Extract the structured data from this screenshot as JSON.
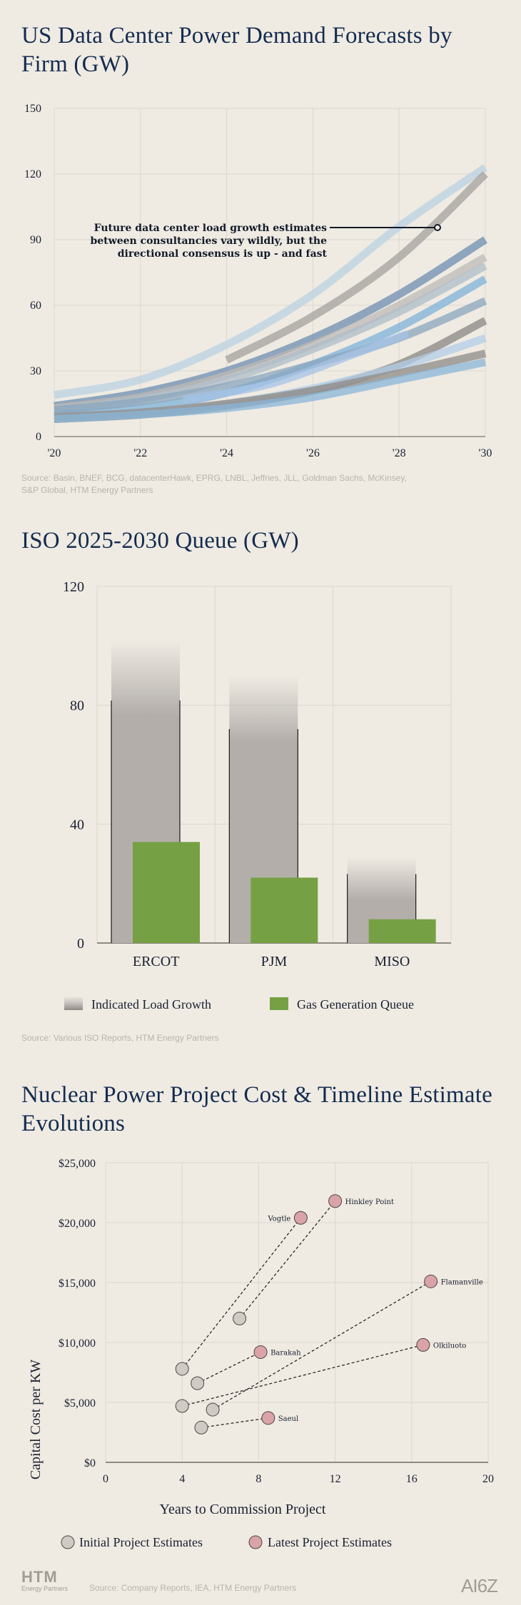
{
  "section1": {
    "title": "US Data Center Power Demand Forecasts by Firm (GW)",
    "annotation_lines": [
      "Future data center load growth estimates",
      "between consultancies vary wildly, but the",
      "directional consensus is up - and fast"
    ],
    "source_lines": [
      "Source: Basin, BNEF, BCG, datacenterHawk, EPRG, LNBL, Jeffries, JLL, Goldman Sachs, McKinsey,",
      "S&P Global, HTM Energy Partners"
    ]
  },
  "section2": {
    "title": "ISO 2025-2030 Queue (GW)",
    "source": "Source: Various ISO Reports, HTM Energy Partners"
  },
  "section3": {
    "title": "Nuclear Power Project Cost & Timeline Estimate Evolutions",
    "source": "Source: Company Reports, IEA, HTM Energy Partners"
  },
  "logos": {
    "left_big": "HTM",
    "left_small": "Energy Partners",
    "right": "AI6Z"
  },
  "colors": {
    "background": "#efebe3",
    "title": "#152c4f",
    "gas_green": "#76a044",
    "load_gray": "#b3aeaa",
    "initial_marker": "#cfcac3",
    "latest_marker": "#d9a3a8"
  },
  "chart_data": [
    {
      "type": "line",
      "title": "US Data Center Power Demand Forecasts by Firm (GW)",
      "x_ticks": [
        "'20",
        "'22",
        "'24",
        "'26",
        "'28",
        "'30"
      ],
      "xlim": [
        2020,
        2030
      ],
      "ylim": [
        0,
        150
      ],
      "y_ticks": [
        "0",
        "30",
        "60",
        "90",
        "120",
        "150"
      ],
      "grid": true,
      "series": [
        {
          "color": "#b9d2e2",
          "x": [
            2020,
            2022,
            2024,
            2026,
            2028,
            2030
          ],
          "values": [
            19,
            26,
            42,
            65,
            96,
            123
          ]
        },
        {
          "color": "#a4a09d",
          "x": [
            2024,
            2026,
            2028,
            2030
          ],
          "values": [
            35,
            55,
            82,
            120
          ]
        },
        {
          "color": "#6d8eb0",
          "x": [
            2020,
            2022,
            2024,
            2026,
            2028,
            2030
          ],
          "values": [
            14,
            20,
            30,
            45,
            65,
            90
          ]
        },
        {
          "color": "#bdb9b5",
          "x": [
            2020,
            2022,
            2024,
            2026,
            2028,
            2030
          ],
          "values": [
            13,
            18,
            28,
            42,
            60,
            82
          ]
        },
        {
          "color": "#aebcc8",
          "x": [
            2020,
            2022,
            2024,
            2026,
            2028,
            2030
          ],
          "values": [
            12,
            17,
            26,
            40,
            57,
            78
          ]
        },
        {
          "color": "#7fb1d8",
          "x": [
            2020,
            2022,
            2024,
            2026,
            2028,
            2030
          ],
          "values": [
            10,
            13,
            20,
            33,
            50,
            72
          ]
        },
        {
          "color": "#8aa5bd",
          "x": [
            2020,
            2022,
            2024,
            2026,
            2028,
            2030
          ],
          "values": [
            12,
            16,
            23,
            33,
            45,
            62
          ]
        },
        {
          "color": "#a6c3e6",
          "x": [
            2023,
            2025,
            2027,
            2028.2
          ],
          "values": [
            17,
            24,
            38,
            47
          ]
        },
        {
          "color": "#8a8682",
          "x": [
            2020,
            2022,
            2024,
            2026,
            2028,
            2030
          ],
          "values": [
            8,
            10,
            14,
            21,
            33,
            53
          ]
        },
        {
          "color": "#b2cde8",
          "x": [
            2020,
            2022,
            2024,
            2026,
            2028,
            2030
          ],
          "values": [
            9,
            11,
            15,
            22,
            32,
            45
          ]
        },
        {
          "color": "#8e8985",
          "x": [
            2020,
            2022,
            2024,
            2026,
            2028,
            2030
          ],
          "values": [
            9,
            11,
            15,
            21,
            29,
            38
          ]
        },
        {
          "color": "#8ab6d8",
          "x": [
            2020,
            2022,
            2024,
            2026,
            2028,
            2030
          ],
          "values": [
            8,
            10,
            13,
            18,
            26,
            34
          ]
        }
      ]
    },
    {
      "type": "bar",
      "title": "ISO 2025-2030 Queue (GW)",
      "categories": [
        "ERCOT",
        "PJM",
        "MISO"
      ],
      "ylim": [
        0,
        120
      ],
      "y_ticks": [
        "0",
        "40",
        "80",
        "120"
      ],
      "series": [
        {
          "name": "Indicated Load Growth",
          "values": [
            102,
            90,
            29
          ]
        },
        {
          "name": "Gas Generation Queue",
          "values": [
            34,
            22,
            8
          ]
        }
      ]
    },
    {
      "type": "scatter",
      "title": "Nuclear Power Project Cost & Timeline Estimate Evolutions",
      "xlabel": "Years to Commission Project",
      "ylabel": "Capital Cost per KW",
      "xlim": [
        0,
        20
      ],
      "ylim": [
        0,
        25000
      ],
      "x_ticks": [
        "0",
        "4",
        "8",
        "12",
        "16",
        "20"
      ],
      "y_ticks": [
        "$0",
        "$5,000",
        "$10,000",
        "$15,000",
        "$20,000",
        "$25,000"
      ],
      "legend": [
        "Initial Project Estimates",
        "Latest Project Estimates"
      ],
      "projects": [
        {
          "name": "Hinkley Point",
          "initial": [
            7,
            12000
          ],
          "latest": [
            12,
            21800
          ]
        },
        {
          "name": "Vogtle",
          "initial": [
            4,
            7800
          ],
          "latest": [
            10.2,
            20400
          ]
        },
        {
          "name": "Flamanville",
          "initial": [
            5.6,
            4400
          ],
          "latest": [
            17,
            15100
          ]
        },
        {
          "name": "Barakah",
          "initial": [
            4.8,
            6600
          ],
          "latest": [
            8.1,
            9200
          ]
        },
        {
          "name": "Olkiluoto",
          "initial": [
            4,
            4700
          ],
          "latest": [
            16.6,
            9800
          ]
        },
        {
          "name": "Saeul",
          "initial": [
            5,
            2900
          ],
          "latest": [
            8.5,
            3700
          ]
        }
      ]
    }
  ]
}
